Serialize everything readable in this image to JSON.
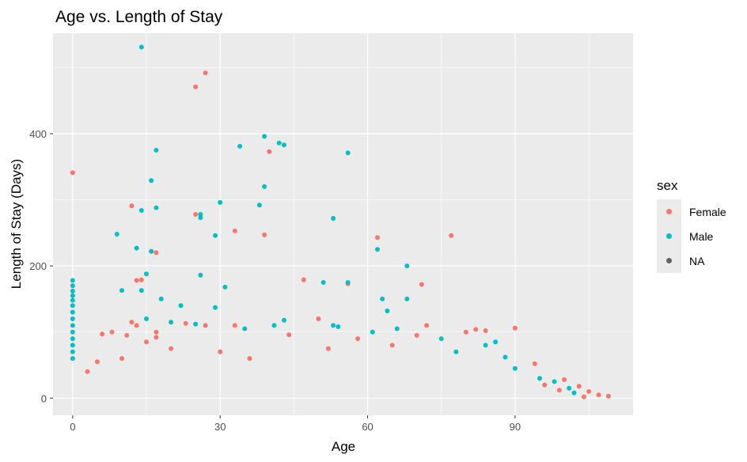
{
  "chart_data": {
    "type": "scatter",
    "title": "Age vs. Length of Stay",
    "xlabel": "Age",
    "ylabel": "Length of Stay (Days)",
    "xlim": [
      -4,
      114
    ],
    "ylim": [
      -26,
      552
    ],
    "x_ticks": [
      0,
      30,
      60,
      90
    ],
    "x_tick_labels": [
      "0",
      "30",
      "60",
      "90"
    ],
    "y_ticks": [
      0,
      200,
      400
    ],
    "y_tick_labels": [
      "0",
      "200",
      "400"
    ],
    "grid": true,
    "background": "#ebebeb",
    "legend": {
      "title": "sex",
      "placement": "right",
      "entries": [
        {
          "label": "Female",
          "color": "#f8766d"
        },
        {
          "label": "Male",
          "color": "#00bfc4"
        },
        {
          "label": "NA",
          "color": "#636363"
        }
      ]
    },
    "series": [
      {
        "name": "Female",
        "color": "#f8766d",
        "points": [
          [
            0,
            341
          ],
          [
            25,
            471
          ],
          [
            27,
            492
          ],
          [
            40,
            373
          ],
          [
            39,
            247
          ],
          [
            33,
            253
          ],
          [
            25,
            278
          ],
          [
            12,
            291
          ],
          [
            14,
            179
          ],
          [
            13,
            178
          ],
          [
            17,
            220
          ],
          [
            16,
            222
          ],
          [
            62,
            243
          ],
          [
            77,
            246
          ],
          [
            47,
            179
          ],
          [
            56,
            173
          ],
          [
            71,
            172
          ],
          [
            50,
            120
          ],
          [
            44,
            96
          ],
          [
            33,
            110
          ],
          [
            17,
            100
          ],
          [
            17,
            92
          ],
          [
            15,
            85
          ],
          [
            11,
            95
          ],
          [
            8,
            100
          ],
          [
            6,
            97
          ],
          [
            12,
            115
          ],
          [
            13,
            110
          ],
          [
            23,
            113
          ],
          [
            27,
            110
          ],
          [
            80,
            100
          ],
          [
            82,
            104
          ],
          [
            84,
            102
          ],
          [
            90,
            106
          ],
          [
            94,
            52
          ],
          [
            100,
            28
          ],
          [
            103,
            18
          ],
          [
            105,
            10
          ],
          [
            107,
            5
          ],
          [
            109,
            3
          ],
          [
            104,
            2
          ],
          [
            99,
            12
          ],
          [
            96,
            20
          ],
          [
            70,
            95
          ],
          [
            72,
            110
          ],
          [
            65,
            80
          ],
          [
            58,
            90
          ],
          [
            52,
            75
          ],
          [
            36,
            60
          ],
          [
            30,
            70
          ],
          [
            20,
            75
          ],
          [
            10,
            60
          ],
          [
            5,
            55
          ],
          [
            3,
            40
          ]
        ]
      },
      {
        "name": "Male",
        "color": "#00bfc4",
        "points": [
          [
            14,
            531
          ],
          [
            39,
            396
          ],
          [
            42,
            386
          ],
          [
            43,
            383
          ],
          [
            34,
            381
          ],
          [
            56,
            371
          ],
          [
            17,
            375
          ],
          [
            16,
            329
          ],
          [
            39,
            320
          ],
          [
            38,
            292
          ],
          [
            30,
            296
          ],
          [
            26,
            278
          ],
          [
            26,
            273
          ],
          [
            17,
            288
          ],
          [
            14,
            284
          ],
          [
            9,
            248
          ],
          [
            29,
            246
          ],
          [
            53,
            272
          ],
          [
            62,
            225
          ],
          [
            68,
            200
          ],
          [
            13,
            227
          ],
          [
            16,
            222
          ],
          [
            15,
            188
          ],
          [
            26,
            186
          ],
          [
            31,
            168
          ],
          [
            51,
            175
          ],
          [
            56,
            175
          ],
          [
            18,
            150
          ],
          [
            22,
            140
          ],
          [
            14,
            163
          ],
          [
            63,
            150
          ],
          [
            64,
            132
          ],
          [
            68,
            150
          ],
          [
            29,
            137
          ],
          [
            10,
            163
          ],
          [
            0,
            178
          ],
          [
            0,
            170
          ],
          [
            0,
            162
          ],
          [
            0,
            155
          ],
          [
            0,
            148
          ],
          [
            0,
            140
          ],
          [
            0,
            130
          ],
          [
            0,
            120
          ],
          [
            0,
            110
          ],
          [
            0,
            100
          ],
          [
            0,
            90
          ],
          [
            0,
            80
          ],
          [
            0,
            70
          ],
          [
            0,
            60
          ],
          [
            15,
            120
          ],
          [
            20,
            115
          ],
          [
            25,
            112
          ],
          [
            35,
            105
          ],
          [
            41,
            110
          ],
          [
            43,
            118
          ],
          [
            53,
            110
          ],
          [
            54,
            108
          ],
          [
            61,
            100
          ],
          [
            66,
            105
          ],
          [
            75,
            90
          ],
          [
            78,
            70
          ],
          [
            84,
            80
          ],
          [
            86,
            85
          ],
          [
            88,
            62
          ],
          [
            90,
            45
          ],
          [
            95,
            30
          ],
          [
            98,
            25
          ],
          [
            101,
            15
          ],
          [
            102,
            8
          ]
        ]
      },
      {
        "name": "NA",
        "color": "#636363",
        "points": []
      }
    ]
  }
}
